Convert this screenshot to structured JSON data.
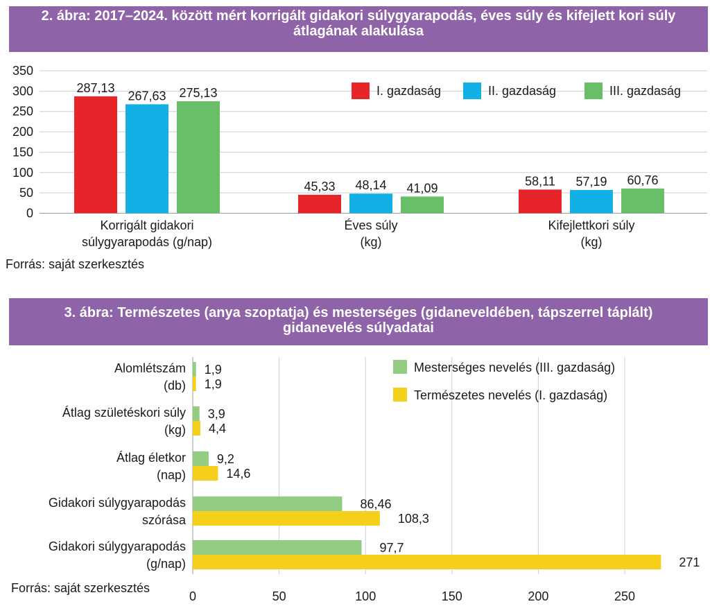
{
  "figure2": {
    "title_line1": "2. ábra: 2017–2024. között mért korrigált gidakori súlygyarapodás, éves súly és kifejlett kori súly",
    "title_line2": "átlagának alakulása",
    "source": "Forrás: saját szerkesztés"
  },
  "figure3": {
    "title_line1": "3. ábra: Természetes (anya szoptatja) és mesterséges (gidaneveldében, tápszerrel táplált)",
    "title_line2": "gidanevelés súlyadatai",
    "source": "Forrás: saját szerkesztés"
  },
  "chart_data": [
    {
      "type": "bar",
      "orientation": "vertical",
      "title": "2. ábra: 2017–2024. között mért korrigált gidakori súlygyarapodás, éves súly és kifejlett kori súly átlagának alakulása",
      "categories": [
        [
          "Korrigált gidakori",
          "súlygyarapodás (g/nap)"
        ],
        [
          "Éves súly",
          "(kg)"
        ],
        [
          "Kifejlettkori súly",
          "(kg)"
        ]
      ],
      "series": [
        {
          "name": "I. gazdaság",
          "color": "#e8242b",
          "values": [
            287.13,
            45.33,
            58.11
          ],
          "labels": [
            "287,13",
            "45,33",
            "58,11"
          ]
        },
        {
          "name": "II. gazdaság",
          "color": "#13b0e6",
          "values": [
            267.63,
            48.14,
            57.19
          ],
          "labels": [
            "267,63",
            "48,14",
            "57,19"
          ]
        },
        {
          "name": "III. gazdaság",
          "color": "#68bf68",
          "values": [
            275.13,
            41.09,
            60.76
          ],
          "labels": [
            "275,13",
            "41,09",
            "60,76"
          ]
        }
      ],
      "ylim": [
        0,
        350
      ],
      "yticks": [
        0,
        50,
        100,
        150,
        200,
        250,
        300,
        350
      ],
      "grid": true,
      "legend": "top-right"
    },
    {
      "type": "bar",
      "orientation": "horizontal",
      "title": "3. ábra: Természetes (anya szoptatja) és mesterséges (gidaneveldében, tápszerrel táplált) gidanevelés súlyadatai",
      "categories": [
        [
          "Alomlétszám",
          "(db)"
        ],
        [
          "Átlag születéskori súly",
          "(kg)"
        ],
        [
          "Átlag életkor",
          "(nap)"
        ],
        [
          "Gidakori súlygyarapodás",
          "szórása"
        ],
        [
          "Gidakori súlygyarapodás",
          "(g/nap)"
        ]
      ],
      "series": [
        {
          "name": "Mesterséges nevelés (III. gazdaság)",
          "color": "#93cc83",
          "values": [
            1.9,
            3.9,
            9.2,
            86.46,
            97.7
          ],
          "labels": [
            "1,9",
            "3,9",
            "9,2",
            "86,46",
            "97,7"
          ]
        },
        {
          "name": "Természetes nevelés (I. gazdaság)",
          "color": "#f5d01b",
          "values": [
            1.9,
            4.4,
            14.6,
            108.3,
            271
          ],
          "labels": [
            "1,9",
            "4,4",
            "14,6",
            "108,3",
            "271"
          ]
        }
      ],
      "xlim": [
        0,
        275
      ],
      "xticks": [
        0,
        50,
        100,
        150,
        200,
        250
      ],
      "grid": true,
      "legend": "top-right"
    }
  ]
}
